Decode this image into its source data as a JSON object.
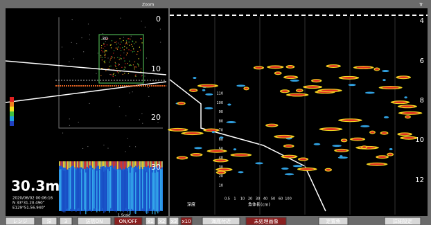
{
  "left_panel": {
    "zoom_label": "Zoom",
    "depth_ticks": [
      "0",
      "10",
      "20",
      "30"
    ],
    "box_label": "30",
    "depth": "30.3m",
    "datetime": "2020/06/02 00:06:16",
    "lat": "N 33°31.20.490\"",
    "lon": "E129°51.56.940\""
  },
  "right_panel": {
    "corner_label": "Tr",
    "depth_ticks": [
      "4",
      "6",
      "8",
      "10",
      "12"
    ],
    "left_label": "深度",
    "size_axis_title": "魚体長(cm)",
    "size_ticks": [
      "110",
      "100",
      "90",
      "80",
      "70",
      "60",
      "50",
      "40",
      "30",
      "20",
      "10"
    ],
    "count_ticks": [
      "0.5",
      "1",
      "10",
      "20",
      "30",
      "40",
      "50",
      "60",
      "100"
    ]
  },
  "toolbar": {
    "scale_label": "1 Scale",
    "buttons": [
      "レンジ",
      "深",
      "3",
      "送信ON",
      "ON/OFF",
      "x1",
      "x2",
      "x3",
      "x10",
      "海底付近",
      "未処理画像",
      "定置魚",
      "詳細設定"
    ]
  }
}
